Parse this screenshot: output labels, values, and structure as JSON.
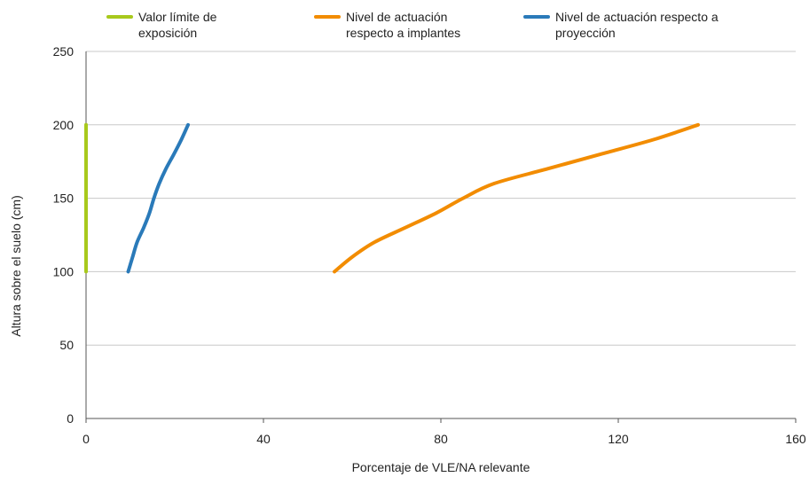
{
  "chart_data": {
    "type": "line",
    "title": "",
    "xlabel": "Porcentaje de VLE/NA relevante",
    "ylabel": "Altura sobre el suelo (cm)",
    "xlim": [
      0,
      160
    ],
    "ylim": [
      0,
      250
    ],
    "x_ticks": [
      "0",
      "40",
      "80",
      "120",
      "160"
    ],
    "y_ticks": [
      "0",
      "50",
      "100",
      "150",
      "200",
      "250"
    ],
    "grid": "horizontal",
    "legend_position": "top",
    "series": [
      {
        "name": "Valor límite de exposición",
        "color": "#a8c91c",
        "points": [
          [
            0,
            100
          ],
          [
            0,
            200
          ]
        ]
      },
      {
        "name": "Nivel de actuación respecto a implantes",
        "color": "#f28c00",
        "points": [
          [
            56,
            100
          ],
          [
            60,
            110
          ],
          [
            65,
            120
          ],
          [
            72,
            130
          ],
          [
            79,
            140
          ],
          [
            85,
            150
          ],
          [
            92,
            160
          ],
          [
            104,
            170
          ],
          [
            116,
            180
          ],
          [
            128,
            190
          ],
          [
            138,
            200
          ]
        ]
      },
      {
        "name": "Nivel de actuación respecto a proyección",
        "color": "#2a7ab9",
        "points": [
          [
            9.5,
            100
          ],
          [
            10.5,
            110
          ],
          [
            11.5,
            120
          ],
          [
            13,
            130
          ],
          [
            14.3,
            140
          ],
          [
            15.3,
            150
          ],
          [
            16.5,
            160
          ],
          [
            18,
            170
          ],
          [
            19.8,
            180
          ],
          [
            21.5,
            190
          ],
          [
            23,
            200
          ]
        ]
      }
    ]
  }
}
